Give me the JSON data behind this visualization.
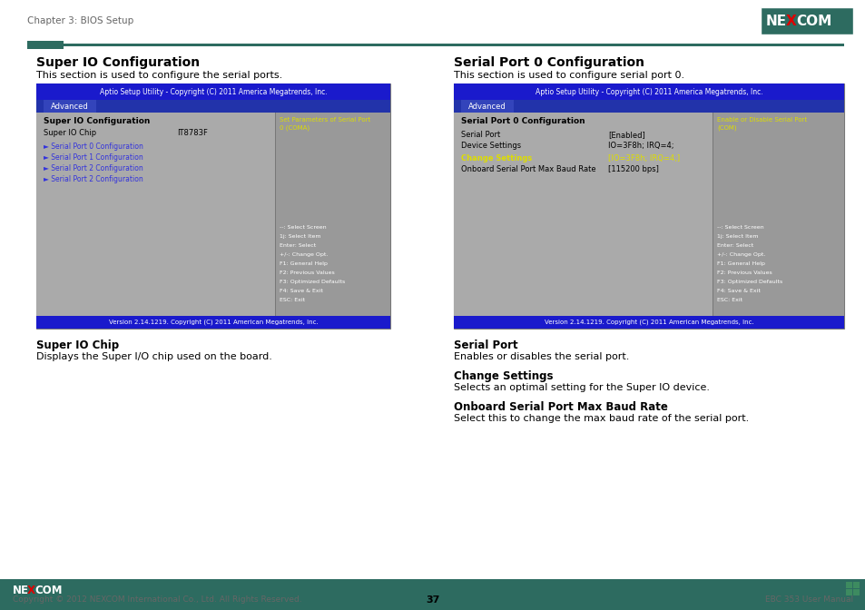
{
  "page_title": "Chapter 3: BIOS Setup",
  "teal_dark": "#2d6b60",
  "bios_header_bg": "#1a1acc",
  "bios_subheader_bg": "#3344bb",
  "bios_footer_bg": "#1a1acc",
  "link_color": "#3333dd",
  "yellow_text": "#dddd00",
  "white": "#ffffff",
  "black": "#000000",
  "light_gray": "#aaaaaa",
  "mid_gray": "#999999",
  "dark_gray": "#777777",
  "gray_text": "#666666",
  "nexcom_red": "#dd0000",
  "nexcom_green": "#2d6b60",
  "left_title": "Super IO Configuration",
  "left_desc": "This section is used to configure the serial ports.",
  "right_title": "Serial Port 0 Configuration",
  "right_desc": "This section is used to configure serial port 0.",
  "bios_title": "Aptio Setup Utility - Copyright (C) 2011 America Megatrends, Inc.",
  "advanced_label": "Advanced",
  "left_bios_main_title": "Super IO Configuration",
  "left_bios_chip_label": "Super IO Chip",
  "left_bios_chip_value": "IT8783F",
  "left_bios_links": [
    "Serial Port 0 Configuration",
    "Serial Port 1 Configuration",
    "Serial Port 2 Configuration",
    "Serial Port 2 Configuration"
  ],
  "left_bios_right_text1": "Set Parameters of Serial Port",
  "left_bios_right_text2": "0 (COMA)",
  "left_bios_help": [
    "--: Select Screen",
    "1j: Select Item",
    "Enter: Select",
    "+/-: Change Opt.",
    "F1: General Help",
    "F2: Previous Values",
    "F3: Optimized Defaults",
    "F4: Save & Exit",
    "ESC: Exit"
  ],
  "left_bios_footer": "Version 2.14.1219. Copyright (C) 2011 American Megatrends, Inc.",
  "right_bios_main_title": "Serial Port 0 Configuration",
  "right_bios_serial_port": "Serial Port",
  "right_bios_serial_port_val": "[Enabled]",
  "right_bios_device": "Device Settings",
  "right_bios_device_val": "IO=3F8h; IRQ=4;",
  "right_bios_change": "Change Settings",
  "right_bios_change_val": "[IO=3F8h; IRQ=4;]",
  "right_bios_baud": "Onboard Serial Port Max Baud Rate",
  "right_bios_baud_val": "[115200 bps]",
  "right_bios_right_text1": "Enable or Disable Serial Port",
  "right_bios_right_text2": "(COM)",
  "right_bios_help": [
    "--: Select Screen",
    "1j: Select Item",
    "Enter: Select",
    "+/-: Change Opt.",
    "F1: General Help",
    "F2: Previous Values",
    "F3: Optimized Defaults",
    "F4: Save & Exit",
    "ESC: Exit"
  ],
  "right_bios_footer": "Version 2.14.1219. Copyright (C) 2011 American Megatrends, Inc.",
  "bottom_left_title": "Super IO Chip",
  "bottom_left_desc": "Displays the Super I/O chip used on the board.",
  "bottom_right1_title": "Serial Port",
  "bottom_right1_desc": "Enables or disables the serial port.",
  "bottom_right2_title": "Change Settings",
  "bottom_right2_desc": "Selects an optimal setting for the Super IO device.",
  "bottom_right3_title": "Onboard Serial Port Max Baud Rate",
  "bottom_right3_desc": "Select this to change the max baud rate of the serial port.",
  "footer_copyright": "Copyright © 2012 NEXCOM International Co., Ltd. All Rights Reserved.",
  "footer_page": "37",
  "footer_manual": "EBC 353 User Manual"
}
